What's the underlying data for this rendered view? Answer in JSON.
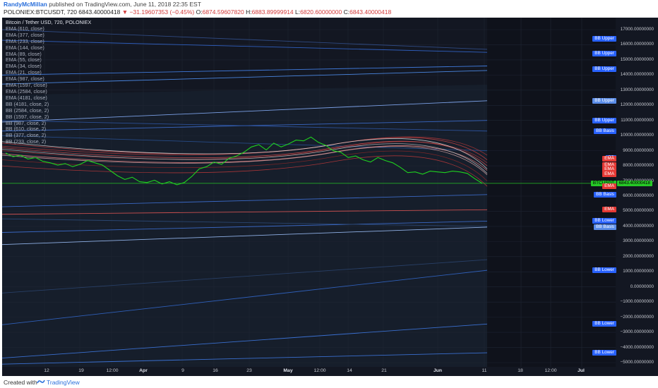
{
  "header": {
    "author": "RandyMcMillan",
    "published_text": "published on TradingView.com, June 11, 2018 22:35 EST",
    "symbol_line": "POLONIEX:BTCUSDT, 720",
    "last": "6843.40000418",
    "change": "▼ −31.19607353 (−0.45%)",
    "o_label": "O:",
    "o_value": "6874.59607820",
    "h_label": "H:",
    "h_value": "6883.89999914",
    "l_label": "L:",
    "l_value": "6820.60000000",
    "c_label": "C:",
    "c_value": "6843.40000418"
  },
  "legend": {
    "title": "Bitcoin / Tether USD, 720, POLONIEX",
    "indicators": [
      "EMA (610, close)",
      "EMA (377, close)",
      "EMA (233, close)",
      "EMA (144, close)",
      "EMA (89, close)",
      "EMA (55, close)",
      "EMA (34, close)",
      "EMA (21, close)",
      "EMA (987, close)",
      "EMA (1597, close)",
      "EMA (2584, close)",
      "EMA (4181, close)",
      "BB (4181, close, 2)",
      "BB (2584, close, 2)",
      "BB (1597, close, 2)",
      "BB (987, close, 2)",
      "BB (610, close, 2)",
      "BB (377, close, 2)",
      "BB (233, close, 2)"
    ]
  },
  "price_axis": {
    "labels": [
      "17000.00000000",
      "16000.00000000",
      "15000.00000000",
      "14000.00000000",
      "13000.00000000",
      "12000.00000000",
      "11000.00000000",
      "10000.00000000",
      "9000.00000000",
      "8000.00000000",
      "7000.00000000",
      "6000.00000000",
      "5000.00000000",
      "4000.00000000",
      "3000.00000000",
      "2000.00000000",
      "1000.00000000",
      "0.00000000",
      "−1000.00000000",
      "−2000.00000000",
      "−3000.00000000",
      "−4000.00000000",
      "−5000.00000000"
    ],
    "values": [
      17000,
      16000,
      15000,
      14000,
      13000,
      12000,
      11000,
      10000,
      9000,
      8000,
      7000,
      6000,
      5000,
      4000,
      3000,
      2000,
      1000,
      0,
      -1000,
      -2000,
      -3000,
      -4000,
      -5000
    ]
  },
  "time_axis": {
    "labels": [
      "12",
      "19",
      "12:00",
      "Apr",
      "9",
      "16",
      "23",
      "May",
      "12:00",
      "14",
      "21",
      "Jun",
      "11",
      "18",
      "12:00",
      "Jul"
    ],
    "bold": [
      "Apr",
      "May",
      "Jun",
      "Jul"
    ]
  },
  "tags": [
    {
      "text": "BB Upper",
      "price": 16400,
      "color": "blue"
    },
    {
      "text": "BB Upper",
      "price": 15400,
      "color": "blue"
    },
    {
      "text": "BB Upper",
      "price": 14400,
      "color": "blue"
    },
    {
      "text": "BB Upper",
      "price": 12300,
      "color": "lblue"
    },
    {
      "text": "BB Upper",
      "price": 11000,
      "color": "blue"
    },
    {
      "text": "BB Basis",
      "price": 10300,
      "color": "blue"
    },
    {
      "text": "BB",
      "price": 8500,
      "color": "blue"
    },
    {
      "text": "EMA",
      "price": 8450,
      "color": "red"
    },
    {
      "text": "EMA",
      "price": 8050,
      "color": "red"
    },
    {
      "text": "EMA",
      "price": 7750,
      "color": "red"
    },
    {
      "text": "EMA",
      "price": 7450,
      "color": "red"
    },
    {
      "text": "BTCUSDT",
      "price": 6843.4,
      "color": "green"
    },
    {
      "text": "EMA",
      "price": 6650,
      "color": "red"
    },
    {
      "text": "BB Basis",
      "price": 6100,
      "color": "blue"
    },
    {
      "text": "EMA",
      "price": 5100,
      "color": "red"
    },
    {
      "text": "BB Lower",
      "price": 4350,
      "color": "blue"
    },
    {
      "text": "BB Basis",
      "price": 3950,
      "color": "lblue"
    },
    {
      "text": "BB Lower",
      "price": 1100,
      "color": "blue"
    },
    {
      "text": "BB Lower",
      "price": -2450,
      "color": "blue"
    },
    {
      "text": "BB Lower",
      "price": -4350,
      "color": "blue"
    }
  ],
  "last_price": {
    "value": "6843.40000418",
    "price": 6843.4
  },
  "chart_data": {
    "type": "line",
    "symbol": "POLONIEX:BTCUSDT",
    "interval": "720",
    "ylim": [
      -5000,
      17500
    ],
    "price_series": [
      [
        0,
        8850
      ],
      [
        2,
        8600
      ],
      [
        4,
        8700
      ],
      [
        6,
        8450
      ],
      [
        8,
        8550
      ],
      [
        10,
        8300
      ],
      [
        12,
        8200
      ],
      [
        14,
        8050
      ],
      [
        16,
        8150
      ],
      [
        18,
        7950
      ],
      [
        20,
        8100
      ],
      [
        22,
        8350
      ],
      [
        24,
        8200
      ],
      [
        26,
        8050
      ],
      [
        28,
        7700
      ],
      [
        30,
        7350
      ],
      [
        32,
        7100
      ],
      [
        34,
        7250
      ],
      [
        36,
        6950
      ],
      [
        38,
        6900
      ],
      [
        40,
        7050
      ],
      [
        42,
        6800
      ],
      [
        44,
        6950
      ],
      [
        46,
        6750
      ],
      [
        48,
        6900
      ],
      [
        50,
        7300
      ],
      [
        52,
        7800
      ],
      [
        54,
        7950
      ],
      [
        56,
        8250
      ],
      [
        58,
        8100
      ],
      [
        60,
        8500
      ],
      [
        62,
        8650
      ],
      [
        64,
        8900
      ],
      [
        66,
        9250
      ],
      [
        68,
        9400
      ],
      [
        70,
        9050
      ],
      [
        72,
        9500
      ],
      [
        74,
        9250
      ],
      [
        76,
        9450
      ],
      [
        78,
        9700
      ],
      [
        80,
        9650
      ],
      [
        82,
        9900
      ],
      [
        84,
        9550
      ],
      [
        86,
        9350
      ],
      [
        88,
        9000
      ],
      [
        90,
        8900
      ],
      [
        92,
        8550
      ],
      [
        94,
        8650
      ],
      [
        96,
        8400
      ],
      [
        98,
        8250
      ],
      [
        100,
        8550
      ],
      [
        102,
        8350
      ],
      [
        104,
        8200
      ],
      [
        106,
        7900
      ],
      [
        108,
        7550
      ],
      [
        110,
        7600
      ],
      [
        112,
        7450
      ],
      [
        114,
        7650
      ],
      [
        116,
        7600
      ],
      [
        118,
        7550
      ],
      [
        120,
        7650
      ],
      [
        122,
        7600
      ],
      [
        124,
        7500
      ],
      [
        126,
        7150
      ],
      [
        128,
        6843.4
      ]
    ]
  },
  "footer": {
    "created_with": "Created with",
    "brand": "TradingView"
  }
}
